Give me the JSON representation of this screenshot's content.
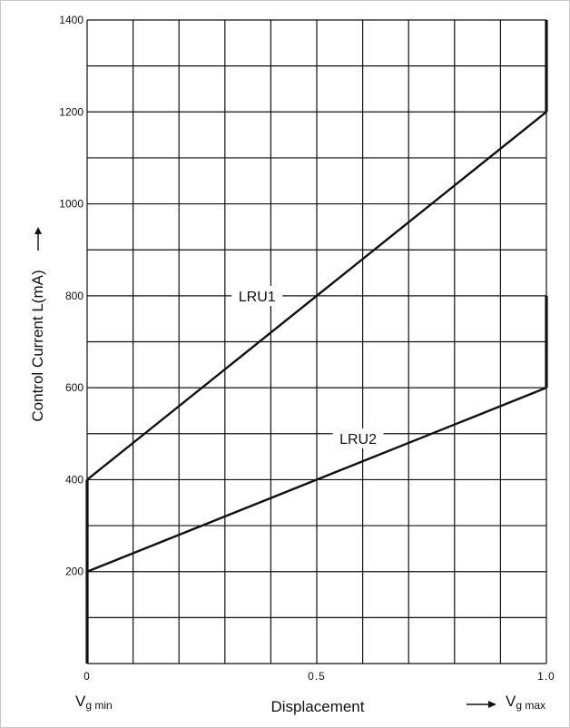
{
  "chart_data": {
    "type": "line",
    "xlabel": "Displacement",
    "ylabel": "Control Current L(mA)",
    "x_ticks": [
      {
        "value": 0,
        "label": "0"
      },
      {
        "value": 0.5,
        "label": "0.5"
      },
      {
        "value": 1.0,
        "label": "1.0"
      }
    ],
    "y_ticks": [
      {
        "value": 200,
        "label": "200"
      },
      {
        "value": 400,
        "label": "400"
      },
      {
        "value": 600,
        "label": "600"
      },
      {
        "value": 800,
        "label": "800"
      },
      {
        "value": 1000,
        "label": "1000"
      },
      {
        "value": 1200,
        "label": "1200"
      },
      {
        "value": 1400,
        "label": "1400"
      }
    ],
    "xlim": [
      0,
      1.0
    ],
    "ylim": [
      0,
      1400
    ],
    "grid": true,
    "x_grid_step": 0.1,
    "y_grid_step": 100,
    "series": [
      {
        "name": "LRU1",
        "x": [
          0,
          1.0
        ],
        "y": [
          400,
          1200
        ],
        "label_at": {
          "x": 0.37,
          "y": 800
        }
      },
      {
        "name": "LRU2",
        "x": [
          0,
          1.0
        ],
        "y": [
          200,
          600
        ],
        "label_at": {
          "x": 0.59,
          "y": 490
        }
      }
    ],
    "vertical_segments": [
      {
        "x": 0,
        "y": [
          0,
          400
        ]
      },
      {
        "x": 1.0,
        "y": [
          600,
          800
        ]
      },
      {
        "x": 1.0,
        "y": [
          1200,
          1400
        ]
      }
    ],
    "x_axis_left": {
      "base": "V",
      "sub": "g min"
    },
    "x_axis_right": {
      "base": "V",
      "sub": "g max"
    }
  }
}
